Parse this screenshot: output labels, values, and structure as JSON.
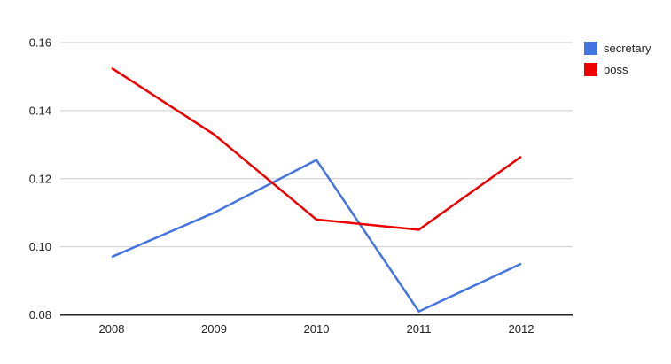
{
  "chart_data": {
    "type": "line",
    "title": "",
    "xlabel": "",
    "ylabel": "",
    "categories": [
      "2008",
      "2009",
      "2010",
      "2011",
      "2012"
    ],
    "series": [
      {
        "name": "secretary",
        "color": "#4374e0",
        "values": [
          0.097,
          0.11,
          0.1255,
          0.081,
          0.095
        ]
      },
      {
        "name": "boss",
        "color": "#ee0000",
        "values": [
          0.1525,
          0.133,
          0.108,
          0.105,
          0.1265
        ]
      }
    ],
    "ylim": [
      0.08,
      0.16
    ],
    "yticks": [
      "0.08",
      "0.10",
      "0.12",
      "0.14",
      "0.16"
    ],
    "grid": true,
    "legend_position": "right",
    "colors": {
      "gridline": "#cccccc",
      "axis_line": "#222222",
      "tick_label": "#222222",
      "background": "#ffffff"
    }
  }
}
